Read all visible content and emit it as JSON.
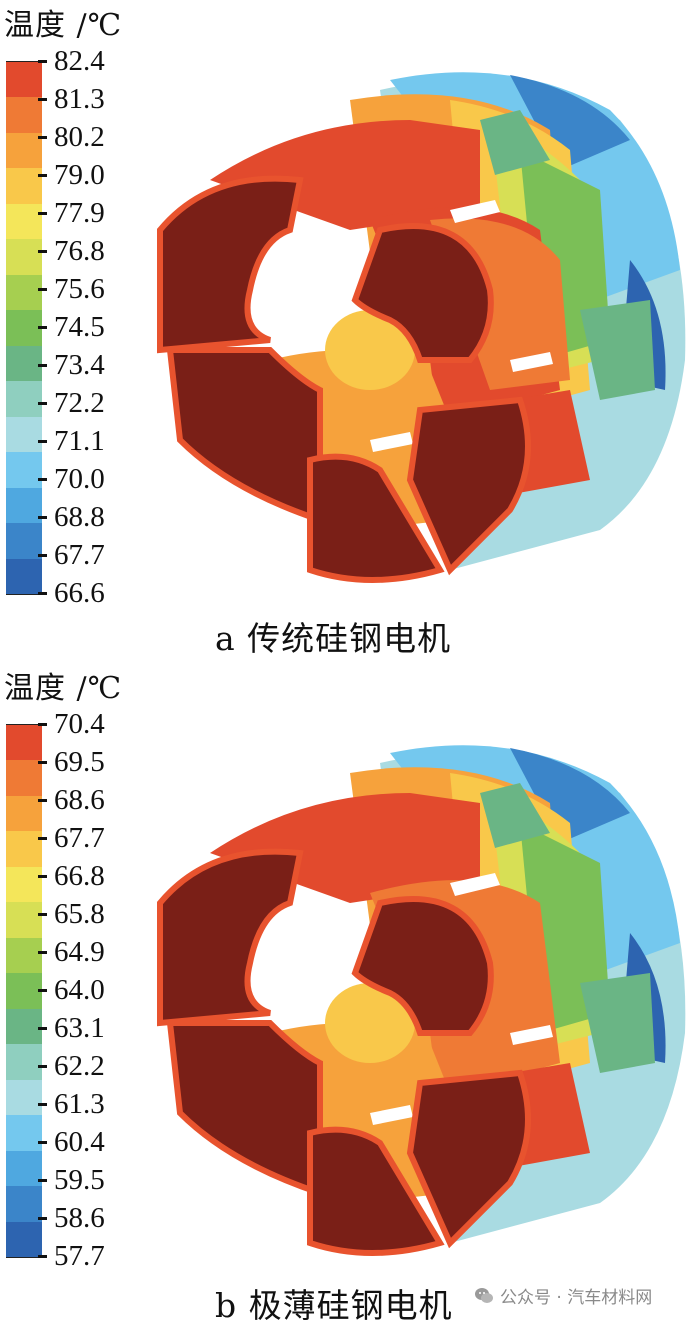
{
  "colors": {
    "scale": [
      "#e24a2d",
      "#ef7a35",
      "#f6a23c",
      "#f9c84a",
      "#f4e65a",
      "#d7df55",
      "#a6cf50",
      "#7bbf57",
      "#6ab585",
      "#8fcfbf",
      "#a9dbe2",
      "#74c8ee",
      "#4fa8e0",
      "#3b85c9",
      "#2d64b0"
    ],
    "coil": "#7a1f17",
    "coil_edge": "#e8532e",
    "gap": "#ffffff"
  },
  "panels": [
    {
      "legend_title": "温度 /℃",
      "ticks": [
        "82.4",
        "81.3",
        "80.2",
        "79.0",
        "77.9",
        "76.8",
        "75.6",
        "74.5",
        "73.4",
        "72.2",
        "71.1",
        "70.0",
        "68.8",
        "67.7",
        "66.6"
      ],
      "caption": "a 传统硅钢电机"
    },
    {
      "legend_title": "温度 /℃",
      "ticks": [
        "70.4",
        "69.5",
        "68.6",
        "67.7",
        "66.8",
        "65.8",
        "64.9",
        "64.0",
        "63.1",
        "62.2",
        "61.3",
        "60.4",
        "59.5",
        "58.6",
        "57.7"
      ],
      "caption": "b 极薄硅钢电机"
    }
  ],
  "watermark": {
    "text": "公众号 · 汽车材料网",
    "icon": "wechat-icon"
  }
}
